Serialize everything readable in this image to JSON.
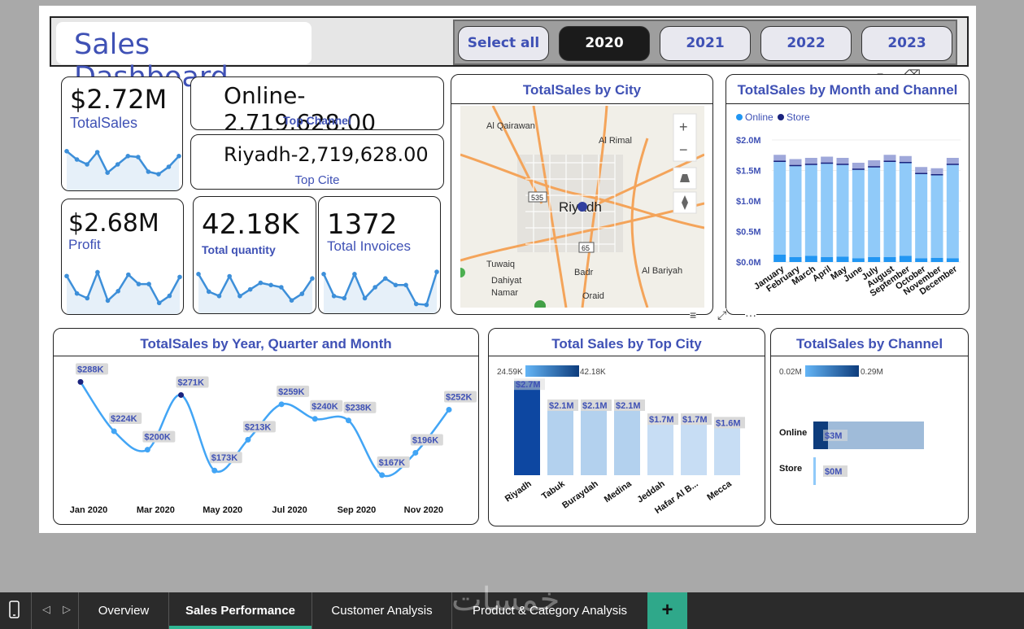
{
  "header": {
    "title": "Sales Dashboard"
  },
  "slicer": {
    "buttons": [
      "Select all",
      "2020",
      "2021",
      "2022",
      "2023"
    ],
    "selected": "2020"
  },
  "kpis": {
    "total_sales": {
      "value": "$2.72M",
      "label": "TotalSales"
    },
    "top_channel": {
      "value": "Online-2,719,628.00",
      "label": "Top Channel"
    },
    "top_city": {
      "value": "Riyadh-2,719,628.00",
      "label": "Top Cite"
    },
    "profit": {
      "value": "$2.68M",
      "label": "Profit"
    },
    "total_quantity": {
      "value": "42.18K",
      "label": "Total quantity"
    },
    "total_invoices": {
      "value": "1372",
      "label": "Total Invoices"
    }
  },
  "map": {
    "title": "TotalSales by City",
    "places": [
      "Al Qairawan",
      "Al Rimal",
      "Riyadh",
      "Tuwaiq",
      "Dahiyat Namar",
      "Badr",
      "Oraid",
      "Al Bariyah"
    ],
    "road_badges": [
      "535",
      "65"
    ],
    "zoom_in": "+",
    "zoom_out": "−"
  },
  "colors": {
    "accent": "#3f51b5",
    "online": "#2196f3",
    "store": "#1a237e",
    "line": "#3d8fd9"
  },
  "chart_data": [
    {
      "type": "bar",
      "title": "TotalSales by Month and Channel",
      "stacked": true,
      "legend": [
        "Online",
        "Store"
      ],
      "categories": [
        "January",
        "February",
        "March",
        "April",
        "May",
        "June",
        "July",
        "August",
        "September",
        "October",
        "November",
        "December"
      ],
      "series": [
        {
          "name": "Online",
          "values": [
            1.65,
            1.58,
            1.6,
            1.62,
            1.6,
            1.52,
            1.56,
            1.65,
            1.63,
            1.45,
            1.43,
            1.6
          ]
        },
        {
          "name": "Store",
          "values": [
            0.12,
            0.08,
            0.1,
            0.08,
            0.09,
            0.06,
            0.08,
            0.08,
            0.1,
            0.06,
            0.07,
            0.06
          ]
        }
      ],
      "yticks": [
        "$0.0M",
        "$0.5M",
        "$1.0M",
        "$1.5M",
        "$2.0M"
      ],
      "ylim": [
        0,
        2.0
      ]
    },
    {
      "type": "line",
      "title": "TotalSales by Year, Quarter and Month",
      "categories": [
        "Jan 2020",
        "Feb 2020",
        "Mar 2020",
        "Apr 2020",
        "May 2020",
        "Jun 2020",
        "Jul 2020",
        "Aug 2020",
        "Sep 2020",
        "Oct 2020",
        "Nov 2020",
        "Dec 2020"
      ],
      "values": [
        288,
        224,
        200,
        271,
        173,
        213,
        259,
        240,
        238,
        167,
        196,
        252
      ],
      "labels": [
        "$288K",
        "$224K",
        "$200K",
        "$271K",
        "$173K",
        "$213K",
        "$259K",
        "$240K",
        "$238K",
        "$167K",
        "$196K",
        "$252K"
      ],
      "xticks": [
        "Jan 2020",
        "Mar 2020",
        "May 2020",
        "Jul 2020",
        "Sep 2020",
        "Nov 2020"
      ],
      "ylim": [
        150,
        300
      ]
    },
    {
      "type": "bar",
      "title": "Total Sales by Top City",
      "categories": [
        "Riyadh",
        "Tabuk",
        "Buraydah",
        "Medina",
        "Jeddah",
        "Hafar Al B...",
        "Mecca"
      ],
      "values": [
        2.7,
        2.1,
        2.1,
        2.1,
        1.7,
        1.7,
        1.6
      ],
      "labels": [
        "$2.7M",
        "$2.1M",
        "$2.1M",
        "$2.1M",
        "$1.7M",
        "$1.7M",
        "$1.6M"
      ],
      "gradient_legend": [
        "24.59K",
        "42.18K"
      ],
      "ylim": [
        0,
        3
      ]
    },
    {
      "type": "bar",
      "orientation": "horizontal",
      "title": "TotalSales by Channel",
      "categories": [
        "Online",
        "Store"
      ],
      "values": [
        2.72,
        0.05
      ],
      "labels": [
        "$3M",
        "$0M"
      ],
      "gradient_legend": [
        "0.02M",
        "0.29M"
      ],
      "xlim": [
        0,
        3
      ]
    }
  ],
  "sparklines": {
    "total_sales": [
      0.72,
      0.55,
      0.45,
      0.7,
      0.28,
      0.45,
      0.62,
      0.6,
      0.3,
      0.25,
      0.4,
      0.62
    ],
    "profit": [
      0.72,
      0.35,
      0.25,
      0.8,
      0.2,
      0.4,
      0.75,
      0.55,
      0.55,
      0.15,
      0.3,
      0.7
    ],
    "quantity": [
      0.8,
      0.4,
      0.3,
      0.75,
      0.3,
      0.45,
      0.6,
      0.55,
      0.5,
      0.2,
      0.35,
      0.7
    ],
    "invoices": [
      0.8,
      0.3,
      0.25,
      0.8,
      0.25,
      0.5,
      0.7,
      0.55,
      0.55,
      0.12,
      0.1,
      0.85
    ]
  },
  "tabs": [
    "Overview",
    "Sales Performance",
    "Customer Analysis",
    "Product & Category Analysis"
  ],
  "active_tab": "Sales Performance",
  "add_tab_label": "+",
  "watermark": "خمسات"
}
